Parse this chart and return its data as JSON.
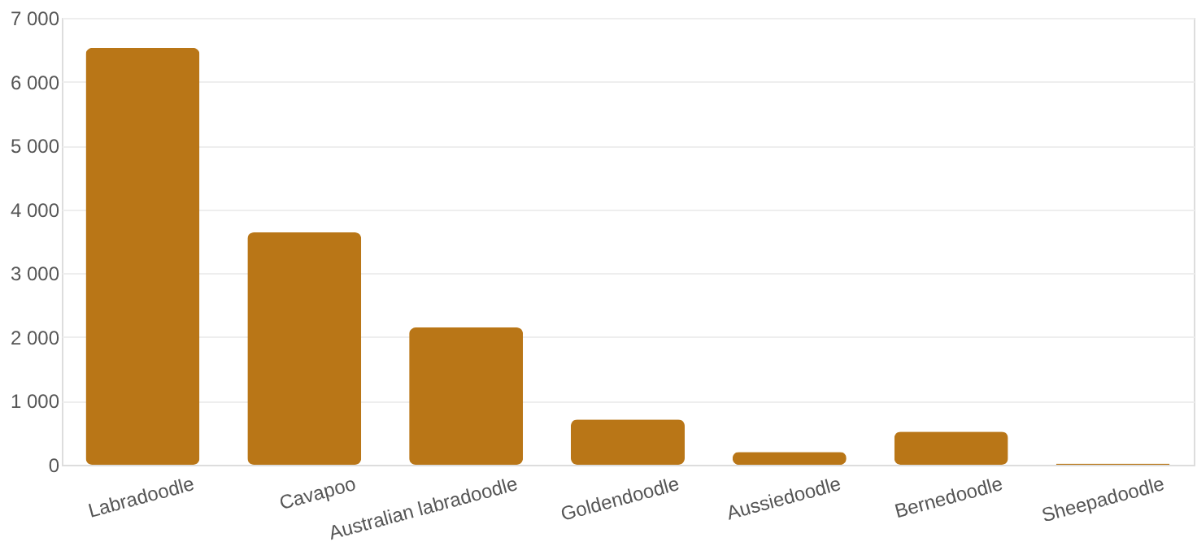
{
  "chart_data": {
    "type": "bar",
    "categories": [
      "Labradoodle",
      "Cavapoo",
      "Australian labradoodle",
      "Goldendoodle",
      "Aussiedoodle",
      "Bernedoodle",
      "Sheepadoodle"
    ],
    "values": [
      6530,
      3640,
      2150,
      710,
      200,
      520,
      20
    ],
    "color": "#b97617",
    "ylim": [
      0,
      7000
    ],
    "yticks": [
      0,
      {
        "value": 1000,
        "label": "1 000"
      },
      {
        "value": 2000,
        "label": "2 000"
      },
      {
        "value": 3000,
        "label": "3 000"
      },
      {
        "value": 4000,
        "label": "4 000"
      },
      {
        "value": 5000,
        "label": "5 000"
      },
      {
        "value": 6000,
        "label": "6 000"
      },
      {
        "value": 7000,
        "label": "7 000"
      }
    ],
    "grid": "y"
  }
}
